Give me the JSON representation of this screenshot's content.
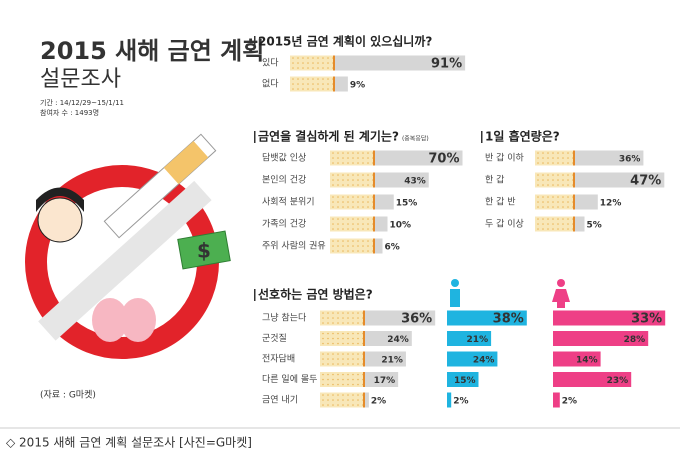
{
  "header": {
    "title": "2015 새해 금연 계획",
    "subtitle": "설문조사",
    "period": "기간 : 14/12/29~15/1/11",
    "participants": "참여자 수 : 1493명",
    "source": "(자료 : G마켓)"
  },
  "caption": "◇ 2015 새해 금연 계획 설문조사 [사진=G마켓]",
  "chart_data": [
    {
      "type": "bar",
      "title": "2015년 금연 계획이 있으십니까?",
      "categories": [
        "있다",
        "없다"
      ],
      "values": [
        91,
        9
      ],
      "value_labels": [
        "91%",
        "9%"
      ],
      "color": "#d6d6d6"
    },
    {
      "type": "bar",
      "title": "금연을 결심하게 된 계기는?",
      "note": "(중복응답)",
      "categories": [
        "담뱃값 인상",
        "본인의 건강",
        "사회적 분위기",
        "가족의 건강",
        "주위 사람의 권유"
      ],
      "values": [
        70,
        43,
        15,
        10,
        6
      ],
      "value_labels": [
        "70%",
        "43%",
        "15%",
        "10%",
        "6%"
      ],
      "color": "#d6d6d6"
    },
    {
      "type": "bar",
      "title": "1일 흡연량은?",
      "categories": [
        "반 갑 이하",
        "한 갑",
        "한 갑 반",
        "두 갑 이상"
      ],
      "values": [
        36,
        47,
        12,
        5
      ],
      "value_labels": [
        "36%",
        "47%",
        "12%",
        "5%"
      ],
      "color": "#d6d6d6"
    },
    {
      "type": "bar",
      "title": "선호하는 금연 방법은?",
      "categories": [
        "그냥 참는다",
        "군것질",
        "전자담배",
        "다른 일에 몰두",
        "금연 내기"
      ],
      "series": [
        {
          "color": "#d6d6d6",
          "values": [
            36,
            24,
            21,
            17,
            2
          ],
          "value_labels": [
            "36%",
            "24%",
            "21%",
            "17%",
            "2%"
          ]
        },
        {
          "color": "#1fb4e0",
          "values": [
            38,
            21,
            24,
            15,
            2
          ],
          "value_labels": [
            "38%",
            "21%",
            "24%",
            "15%",
            "2%"
          ]
        },
        {
          "color": "#ee3f86",
          "values": [
            33,
            28,
            14,
            23,
            2
          ],
          "value_labels": [
            "33%",
            "28%",
            "14%",
            "23%",
            "2%"
          ]
        }
      ]
    }
  ]
}
